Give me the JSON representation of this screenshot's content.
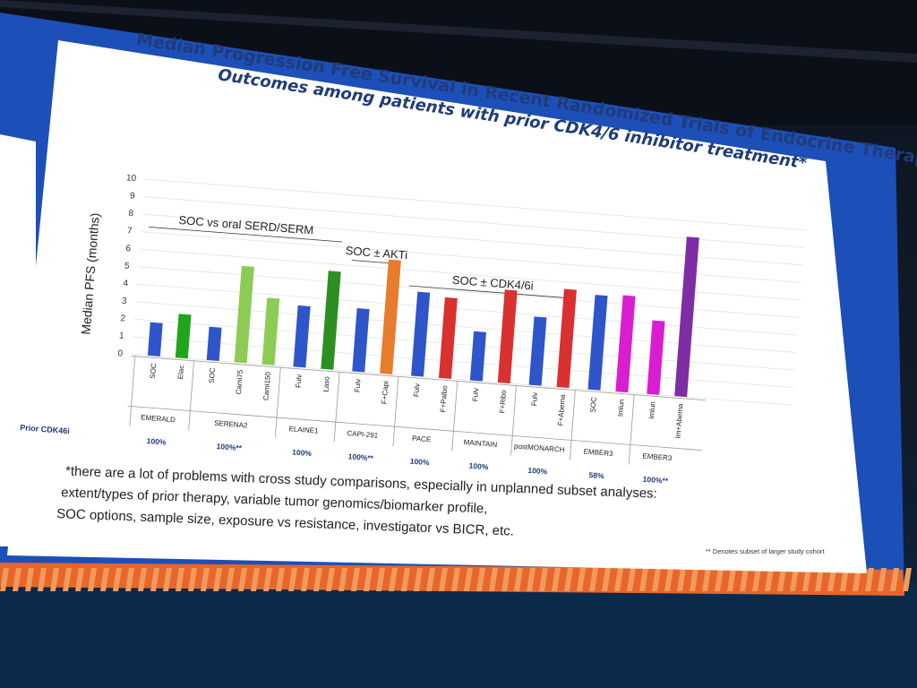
{
  "title": "Median Progression Free Survival in Recent Randomized Trials of Endocrine Therapy:",
  "subtitle": "Outcomes among patients with prior CDK4/6 inhibitor treatment*",
  "colors": {
    "blue": "#2e55c9",
    "green": "#20a51b",
    "light_green": "#8ccc55",
    "dark_green": "#2d8f22",
    "orange": "#e97b2d",
    "red": "#d8312f",
    "magenta": "#d91ed1",
    "purple": "#7f2da5"
  },
  "chart_data": {
    "type": "bar",
    "ylabel": "Median PFS (months)",
    "ylim": [
      0,
      10
    ],
    "yticks": [
      "0",
      "1",
      "2",
      "3",
      "4",
      "5",
      "6",
      "7",
      "8",
      "9",
      "10"
    ],
    "groups": [
      {
        "label": "SOC vs oral SERD/SERM"
      },
      {
        "label": "SOC ± AKTi"
      },
      {
        "label": "SOC ± CDK4/6i"
      }
    ],
    "row_label": "Prior CDK46i",
    "trials": [
      {
        "name": "EMERALD",
        "prior_cdk46i": "100%",
        "bars": [
          {
            "label": "SOC",
            "value": 1.9,
            "color": "blue"
          },
          {
            "label": "Elac",
            "value": 2.5,
            "color": "green"
          }
        ]
      },
      {
        "name": "SERENA2",
        "prior_cdk46i": "100%**",
        "bars": [
          {
            "label": "SOC",
            "value": 1.9,
            "color": "blue"
          },
          {
            "label": "Cami75",
            "value": 5.5,
            "color": "light_green"
          },
          {
            "label": "Cami150",
            "value": 3.8,
            "color": "light_green"
          }
        ]
      },
      {
        "name": "ELAINE1",
        "prior_cdk46i": "100%",
        "bars": [
          {
            "label": "Fulv",
            "value": 3.5,
            "color": "blue"
          },
          {
            "label": "Laso",
            "value": 5.6,
            "color": "dark_green"
          }
        ]
      },
      {
        "name": "CAPI-291",
        "prior_cdk46i": "100%**",
        "bars": [
          {
            "label": "Fulv",
            "value": 3.6,
            "color": "blue"
          },
          {
            "label": "F+Capi",
            "value": 6.5,
            "color": "orange"
          }
        ]
      },
      {
        "name": "PACE",
        "prior_cdk46i": "100%",
        "bars": [
          {
            "label": "Fulv",
            "value": 4.8,
            "color": "blue"
          },
          {
            "label": "F+Palbo",
            "value": 4.6,
            "color": "red"
          }
        ]
      },
      {
        "name": "MAINTAIN",
        "prior_cdk46i": "100%",
        "bars": [
          {
            "label": "Fulv",
            "value": 2.8,
            "color": "blue"
          },
          {
            "label": "F+Ribo",
            "value": 5.3,
            "color": "red"
          }
        ]
      },
      {
        "name": "postMONARCH",
        "prior_cdk46i": "100%",
        "bars": [
          {
            "label": "Fulv",
            "value": 3.9,
            "color": "blue"
          },
          {
            "label": "F+Abema",
            "value": 5.6,
            "color": "red"
          }
        ]
      },
      {
        "name": "EMBER3",
        "prior_cdk46i": "58%",
        "bars": [
          {
            "label": "SOC",
            "value": 5.4,
            "color": "blue"
          },
          {
            "label": "Imlun",
            "value": 5.5,
            "color": "magenta"
          }
        ]
      },
      {
        "name": "EMBER3",
        "prior_cdk46i": "100%**",
        "bars": [
          {
            "label": "Imlun",
            "value": 4.2,
            "color": "magenta"
          },
          {
            "label": "Im+Abema",
            "value": 9.1,
            "color": "purple"
          }
        ]
      }
    ]
  },
  "footnote_lines": [
    "*there are a lot of problems with cross study comparisons, especially in unplanned subset analyses:",
    "extent/types of prior therapy, variable tumor genomics/biomarker profile,",
    "SOC options, sample size, exposure vs resistance, investigator vs BICR, etc."
  ],
  "subset_note": "** Denotes subset of larger study cohort"
}
